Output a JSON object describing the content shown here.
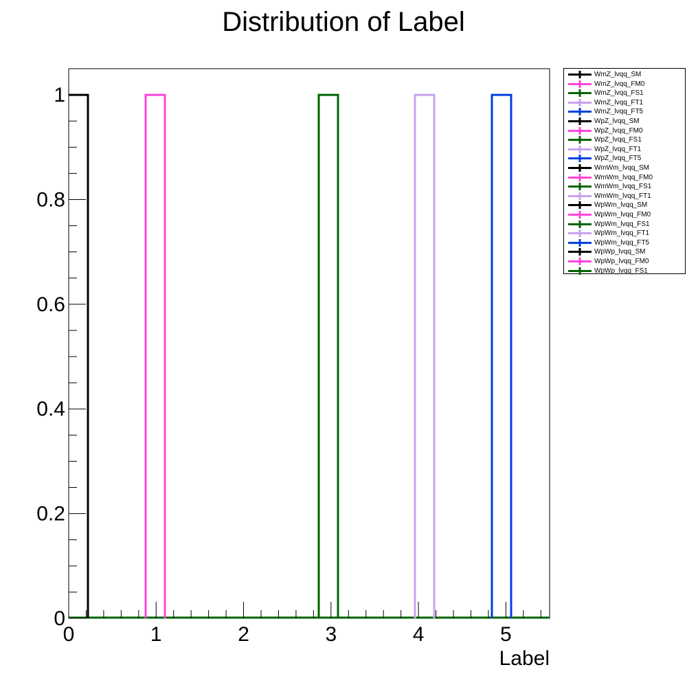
{
  "chart_data": {
    "type": "histogram",
    "title": "Distribution of Label",
    "xlabel": "Label",
    "ylabel": "",
    "xlim": [
      0,
      5.5
    ],
    "ylim": [
      0,
      1.05
    ],
    "bin_width": 0.22,
    "grid": false,
    "legend_position": "right",
    "x_tick_labels": [
      "0",
      "1",
      "2",
      "3",
      "4",
      "5"
    ],
    "y_tick_labels": [
      "0",
      "0.2",
      "0.4",
      "0.6",
      "0.8",
      "1"
    ],
    "series": [
      {
        "name": "WmZ_lvqq_SM",
        "color": "#000000",
        "bin_start": 0.0,
        "value": 1
      },
      {
        "name": "WmZ_lvqq_FM0",
        "color": "#ff44dd",
        "bin_start": 0.88,
        "value": 1
      },
      {
        "name": "WmZ_lvqq_FS1",
        "color": "#006400",
        "bin_start": 2.86,
        "value": 1
      },
      {
        "name": "WmZ_lvqq_FT1",
        "color": "#c8a2f0",
        "bin_start": 3.96,
        "value": 1
      },
      {
        "name": "WmZ_lvqq_FT5",
        "color": "#0040e0",
        "bin_start": 4.84,
        "value": 1
      },
      {
        "name": "WpZ_lvqq_SM",
        "color": "#000000"
      },
      {
        "name": "WpZ_lvqq_FM0",
        "color": "#ff44dd"
      },
      {
        "name": "WpZ_lvqq_FS1",
        "color": "#006400"
      },
      {
        "name": "WpZ_lvqq_FT1",
        "color": "#c8a2f0"
      },
      {
        "name": "WpZ_lvqq_FT5",
        "color": "#0040e0"
      },
      {
        "name": "WmWm_lvqq_SM",
        "color": "#000000"
      },
      {
        "name": "WmWm_lvqq_FM0",
        "color": "#ff44dd"
      },
      {
        "name": "WmWm_lvqq_FS1",
        "color": "#006400"
      },
      {
        "name": "WmWm_lvqq_FT1",
        "color": "#c8a2f0"
      },
      {
        "name": "WpWm_lvqq_SM",
        "color": "#000000"
      },
      {
        "name": "WpWm_lvqq_FM0",
        "color": "#ff44dd"
      },
      {
        "name": "WpWm_lvqq_FS1",
        "color": "#006400"
      },
      {
        "name": "WpWm_lvqq_FT1",
        "color": "#c8a2f0"
      },
      {
        "name": "WpWm_lvqq_FT5",
        "color": "#0040e0"
      },
      {
        "name": "WpWp_lvqq_SM",
        "color": "#000000"
      },
      {
        "name": "WpWp_lvqq_FM0",
        "color": "#ff44dd"
      },
      {
        "name": "WpWp_lvqq_FS1",
        "color": "#006400"
      }
    ]
  }
}
